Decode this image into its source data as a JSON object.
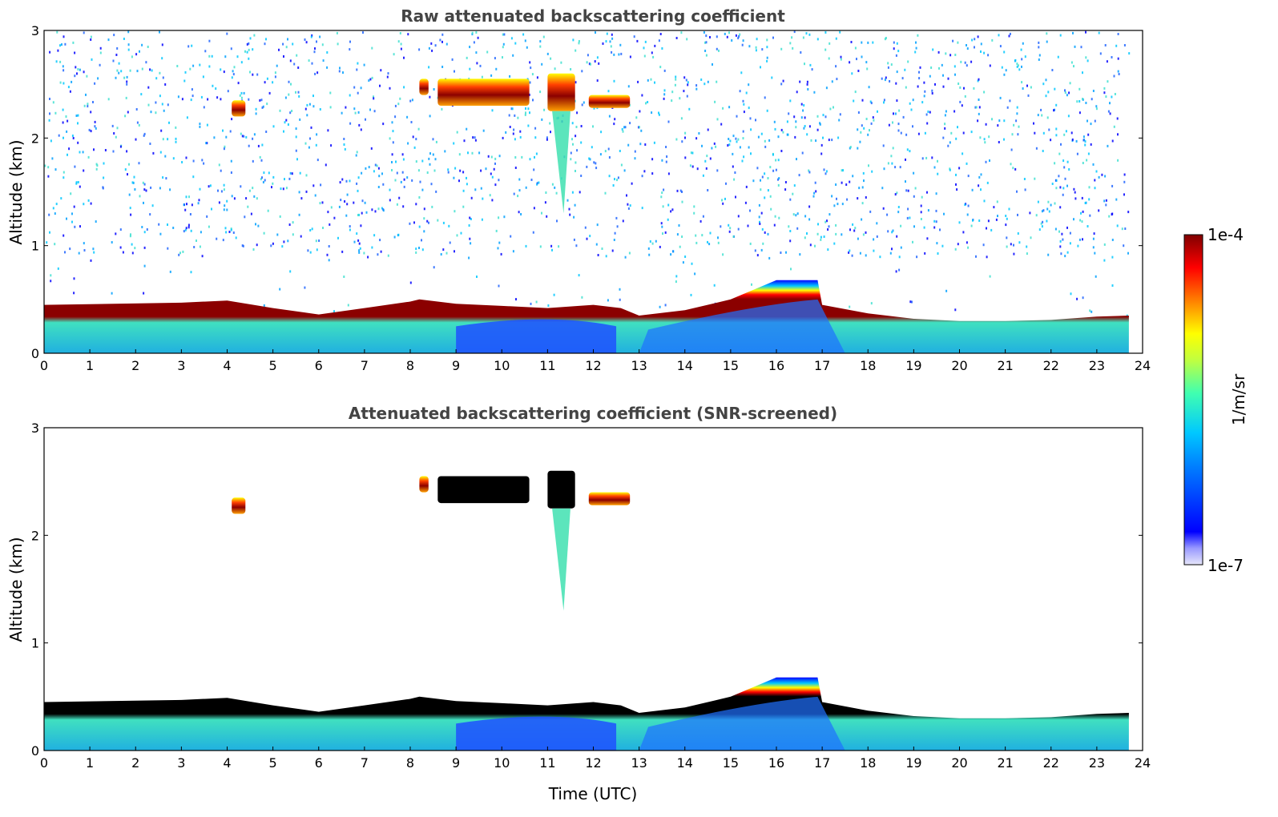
{
  "chart_data": [
    {
      "type": "heatmap",
      "title": "Raw attenuated backscattering coefficient",
      "xlabel": "",
      "ylabel": "Altitude (km)",
      "xlim": [
        0,
        24
      ],
      "ylim": [
        0,
        3
      ],
      "xticks": [
        "0",
        "1",
        "2",
        "3",
        "4",
        "5",
        "6",
        "7",
        "8",
        "9",
        "10",
        "11",
        "12",
        "13",
        "14",
        "15",
        "16",
        "17",
        "18",
        "19",
        "20",
        "21",
        "22",
        "23",
        "24"
      ],
      "yticks": [
        "0",
        "1",
        "2",
        "3"
      ],
      "data_end_time": 23.7,
      "boundary_layer_top_km": {
        "time": [
          0,
          3,
          4,
          5,
          6,
          7,
          8,
          8.2,
          9,
          10,
          11,
          12,
          12.6,
          13,
          14,
          15,
          16,
          16.9,
          17,
          18,
          19,
          20,
          21,
          22,
          23,
          23.7
        ],
        "value": [
          0.45,
          0.47,
          0.49,
          0.42,
          0.36,
          0.42,
          0.48,
          0.5,
          0.46,
          0.44,
          0.42,
          0.45,
          0.42,
          0.35,
          0.4,
          0.5,
          0.68,
          0.68,
          0.45,
          0.37,
          0.32,
          0.3,
          0.3,
          0.31,
          0.34,
          0.35
        ]
      },
      "cloud_layers": [
        {
          "t0": 8.2,
          "t1": 8.4,
          "z0": 2.4,
          "z1": 2.55
        },
        {
          "t0": 8.6,
          "t1": 10.6,
          "z0": 2.3,
          "z1": 2.55
        },
        {
          "t0": 11.0,
          "t1": 11.6,
          "z0": 2.25,
          "z1": 2.6
        },
        {
          "t0": 11.9,
          "t1": 12.8,
          "z0": 2.28,
          "z1": 2.4
        },
        {
          "t0": 4.1,
          "t1": 4.4,
          "z0": 2.2,
          "z1": 2.35
        }
      ],
      "noise_above_km": 0.9
    },
    {
      "type": "heatmap",
      "title": "Attenuated backscattering coefficient (SNR-screened)",
      "xlabel": "Time (UTC)",
      "ylabel": "Altitude (km)",
      "xlim": [
        0,
        24
      ],
      "ylim": [
        0,
        3
      ],
      "xticks": [
        "0",
        "1",
        "2",
        "3",
        "4",
        "5",
        "6",
        "7",
        "8",
        "9",
        "10",
        "11",
        "12",
        "13",
        "14",
        "15",
        "16",
        "17",
        "18",
        "19",
        "20",
        "21",
        "22",
        "23",
        "24"
      ],
      "yticks": [
        "0",
        "1",
        "2",
        "3"
      ],
      "data_end_time": 23.7,
      "saturated_color": "#000000"
    }
  ],
  "colorbar": {
    "label": "1/m/sr",
    "max_label": "1e-4",
    "min_label": "1e-7",
    "colormap": [
      "#e6e6fa",
      "#0000ff",
      "#00c8ff",
      "#40ffb0",
      "#ffff00",
      "#ff8000",
      "#ff0000",
      "#800000"
    ]
  }
}
